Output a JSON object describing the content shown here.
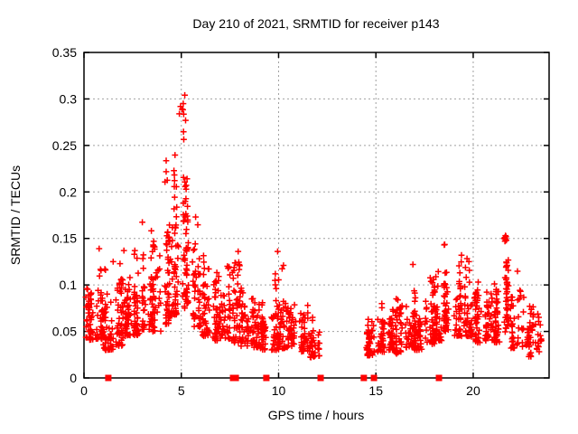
{
  "chart_data": {
    "type": "scatter",
    "title": "Day 210 of 2021, SRMTID for receiver p143",
    "xlabel": "GPS time / hours",
    "ylabel": "SRMTID / TECUs",
    "xlim": [
      0,
      23.9
    ],
    "ylim": [
      0,
      0.35
    ],
    "xticks": [
      0,
      5,
      10,
      15,
      20
    ],
    "xtick_labels": [
      "0",
      "5",
      "10",
      "15",
      "20"
    ],
    "yticks": [
      0,
      0.05,
      0.1,
      0.15,
      0.2,
      0.25,
      0.3,
      0.35
    ],
    "ytick_labels": [
      "0",
      "0.05",
      "0.1",
      "0.15",
      "0.2",
      "0.25",
      "0.3",
      "0.35"
    ],
    "grid": true,
    "legend": "none",
    "marker": "plus",
    "marker_color": "#ff0000",
    "grid_color": "#a0a0a0",
    "axis_color": "#000000",
    "data_gap_hours": [
      12.1,
      14.35
    ],
    "baseline_marker_hours": [
      1.25,
      7.66,
      7.8,
      9.37,
      12.16,
      14.38,
      14.9,
      18.24
    ],
    "density_bins_format": [
      "t_start_h",
      "t_end_h",
      "n_points",
      "y_min_TECU",
      "y_max_TECU",
      "low_bias_exponent"
    ],
    "density_bins": [
      [
        0.0,
        0.5,
        46,
        0.04,
        0.108,
        1.5
      ],
      [
        0.5,
        1.0,
        46,
        0.042,
        0.132,
        1.7
      ],
      [
        1.0,
        1.5,
        46,
        0.03,
        0.122,
        1.6
      ],
      [
        1.5,
        2.0,
        46,
        0.034,
        0.126,
        1.6
      ],
      [
        2.0,
        2.5,
        46,
        0.044,
        0.112,
        1.5
      ],
      [
        2.5,
        3.0,
        46,
        0.046,
        0.138,
        1.6
      ],
      [
        3.0,
        3.5,
        46,
        0.052,
        0.172,
        1.7
      ],
      [
        3.5,
        4.0,
        46,
        0.05,
        0.162,
        1.7
      ],
      [
        4.0,
        4.5,
        50,
        0.058,
        0.245,
        2.0
      ],
      [
        4.5,
        5.0,
        56,
        0.068,
        0.298,
        1.8
      ],
      [
        5.0,
        5.5,
        62,
        0.075,
        0.302,
        1.5
      ],
      [
        5.5,
        6.0,
        46,
        0.055,
        0.188,
        1.7
      ],
      [
        6.0,
        6.5,
        44,
        0.045,
        0.138,
        1.6
      ],
      [
        6.5,
        7.0,
        44,
        0.04,
        0.128,
        1.6
      ],
      [
        7.0,
        7.5,
        44,
        0.042,
        0.122,
        1.6
      ],
      [
        7.5,
        8.0,
        44,
        0.038,
        0.14,
        1.8
      ],
      [
        8.0,
        8.5,
        42,
        0.034,
        0.098,
        1.4
      ],
      [
        8.5,
        9.0,
        42,
        0.032,
        0.09,
        1.4
      ],
      [
        9.0,
        9.5,
        40,
        0.03,
        0.088,
        1.4
      ],
      [
        9.5,
        10.0,
        40,
        0.03,
        0.112,
        1.7
      ],
      [
        10.0,
        10.5,
        40,
        0.032,
        0.118,
        1.7
      ],
      [
        10.5,
        11.0,
        40,
        0.034,
        0.094,
        1.4
      ],
      [
        11.0,
        11.5,
        40,
        0.028,
        0.084,
        1.4
      ],
      [
        11.5,
        12.1,
        42,
        0.022,
        0.066,
        1.3
      ],
      [
        14.35,
        15.0,
        48,
        0.024,
        0.072,
        1.3
      ],
      [
        15.0,
        15.5,
        42,
        0.028,
        0.084,
        1.4
      ],
      [
        15.5,
        16.0,
        42,
        0.03,
        0.09,
        1.4
      ],
      [
        16.0,
        16.5,
        42,
        0.026,
        0.086,
        1.4
      ],
      [
        16.5,
        17.0,
        42,
        0.032,
        0.098,
        1.5
      ],
      [
        17.0,
        17.5,
        42,
        0.03,
        0.092,
        1.4
      ],
      [
        17.5,
        18.0,
        42,
        0.036,
        0.108,
        1.5
      ],
      [
        18.0,
        18.5,
        42,
        0.04,
        0.118,
        1.6
      ],
      [
        18.5,
        19.0,
        46,
        0.05,
        0.148,
        1.1
      ],
      [
        19.0,
        19.5,
        42,
        0.045,
        0.128,
        1.4
      ],
      [
        19.5,
        20.0,
        44,
        0.044,
        0.142,
        1.6
      ],
      [
        20.0,
        20.5,
        42,
        0.038,
        0.108,
        1.4
      ],
      [
        20.5,
        21.0,
        42,
        0.04,
        0.104,
        1.4
      ],
      [
        21.0,
        21.5,
        42,
        0.038,
        0.112,
        1.5
      ],
      [
        21.5,
        21.9,
        42,
        0.048,
        0.15,
        1.1
      ],
      [
        21.9,
        22.6,
        46,
        0.032,
        0.118,
        1.5
      ],
      [
        22.6,
        23.2,
        40,
        0.022,
        0.09,
        1.4
      ],
      [
        23.2,
        23.55,
        18,
        0.028,
        0.072,
        1.3
      ]
    ],
    "outlier_points": [
      [
        5.18,
        0.304
      ],
      [
        5.1,
        0.295
      ],
      [
        5.04,
        0.289
      ],
      [
        4.96,
        0.292
      ],
      [
        4.9,
        0.284
      ],
      [
        5.22,
        0.277
      ],
      [
        21.62,
        0.151
      ],
      [
        21.65,
        0.149
      ],
      [
        21.68,
        0.152
      ],
      [
        21.63,
        0.147
      ],
      [
        21.66,
        0.153
      ],
      [
        21.7,
        0.148
      ],
      [
        21.64,
        0.15
      ],
      [
        0.78,
        0.139
      ],
      [
        1.5,
        0.125
      ],
      [
        2.05,
        0.137
      ],
      [
        7.92,
        0.136
      ],
      [
        9.95,
        0.136
      ],
      [
        10.25,
        0.121
      ],
      [
        16.9,
        0.122
      ],
      [
        19.4,
        0.132
      ]
    ]
  }
}
